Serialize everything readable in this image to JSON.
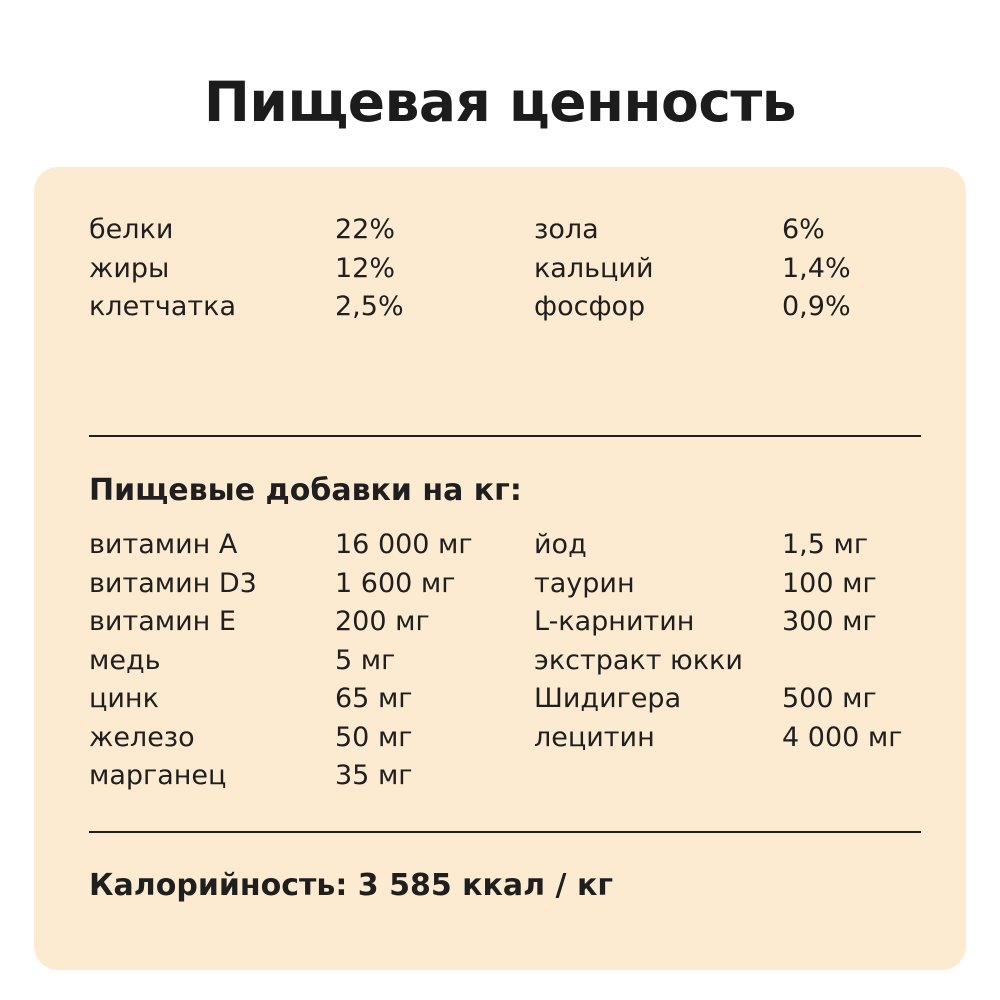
{
  "title": "Пищевая ценность",
  "composition": [
    {
      "name": "белки",
      "value": "22%",
      "name2": "зола",
      "value2": "6%"
    },
    {
      "name": "жиры",
      "value": "12%",
      "name2": "кальций",
      "value2": "1,4%"
    },
    {
      "name": "клетчатка",
      "value": "2,5%",
      "name2": "фосфор",
      "value2": "0,9%"
    }
  ],
  "additives_heading": "Пищевые добавки на кг:",
  "additives": [
    {
      "name": "витамин A",
      "value": "16 000 мг",
      "name2": "йод",
      "value2": "1,5 мг"
    },
    {
      "name": "витамин D3",
      "value": "1 600 мг",
      "name2": "таурин",
      "value2": "100 мг"
    },
    {
      "name": "витамин E",
      "value": "200 мг",
      "name2": "L-карнитин",
      "value2": "300 мг"
    },
    {
      "name": "медь",
      "value": "5 мг",
      "name2": "экстракт юкки",
      "value2": ""
    },
    {
      "name": "цинк",
      "value": "65 мг",
      "name2": "Шидигера",
      "value2": "500 мг"
    },
    {
      "name": "железо",
      "value": "50 мг",
      "name2": "лецитин",
      "value2": "4 000 мг"
    },
    {
      "name": "марганец",
      "value": "35 мг",
      "name2": "",
      "value2": ""
    }
  ],
  "calories": "Калорийность: 3 585 ккал / кг",
  "colors": {
    "card_background": "#fcebd0",
    "text": "#1f1f1f"
  }
}
